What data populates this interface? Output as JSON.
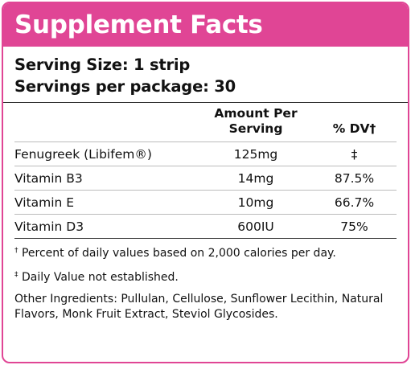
{
  "header": {
    "title": "Supplement Facts"
  },
  "serving": {
    "size": "Serving Size: 1 strip",
    "per_package": "Servings per package: 30"
  },
  "columns": {
    "amount": "Amount Per Serving",
    "dv": "% DV†"
  },
  "nutrients": [
    {
      "name": "Fenugreek (Libifem®)",
      "amount": "125mg",
      "dv": "‡"
    },
    {
      "name": "Vitamin B3",
      "amount": "14mg",
      "dv": "87.5%"
    },
    {
      "name": "Vitamin E",
      "amount": "10mg",
      "dv": "66.7%"
    },
    {
      "name": "Vitamin D3",
      "amount": "600IU",
      "dv": "75%"
    }
  ],
  "footnotes": {
    "dagger_mark": "†",
    "dagger_text": "Percent of daily values based on 2,000 calories per day.",
    "double_dagger_mark": "‡",
    "double_dagger_text": "Daily Value not established."
  },
  "other_ingredients": "Other Ingredients: Pullulan, Cellulose, Sunflower Lecithin, Natural Flavors, Monk Fruit Extract, Steviol Glycosides.",
  "colors": {
    "accent": "#e04595"
  }
}
